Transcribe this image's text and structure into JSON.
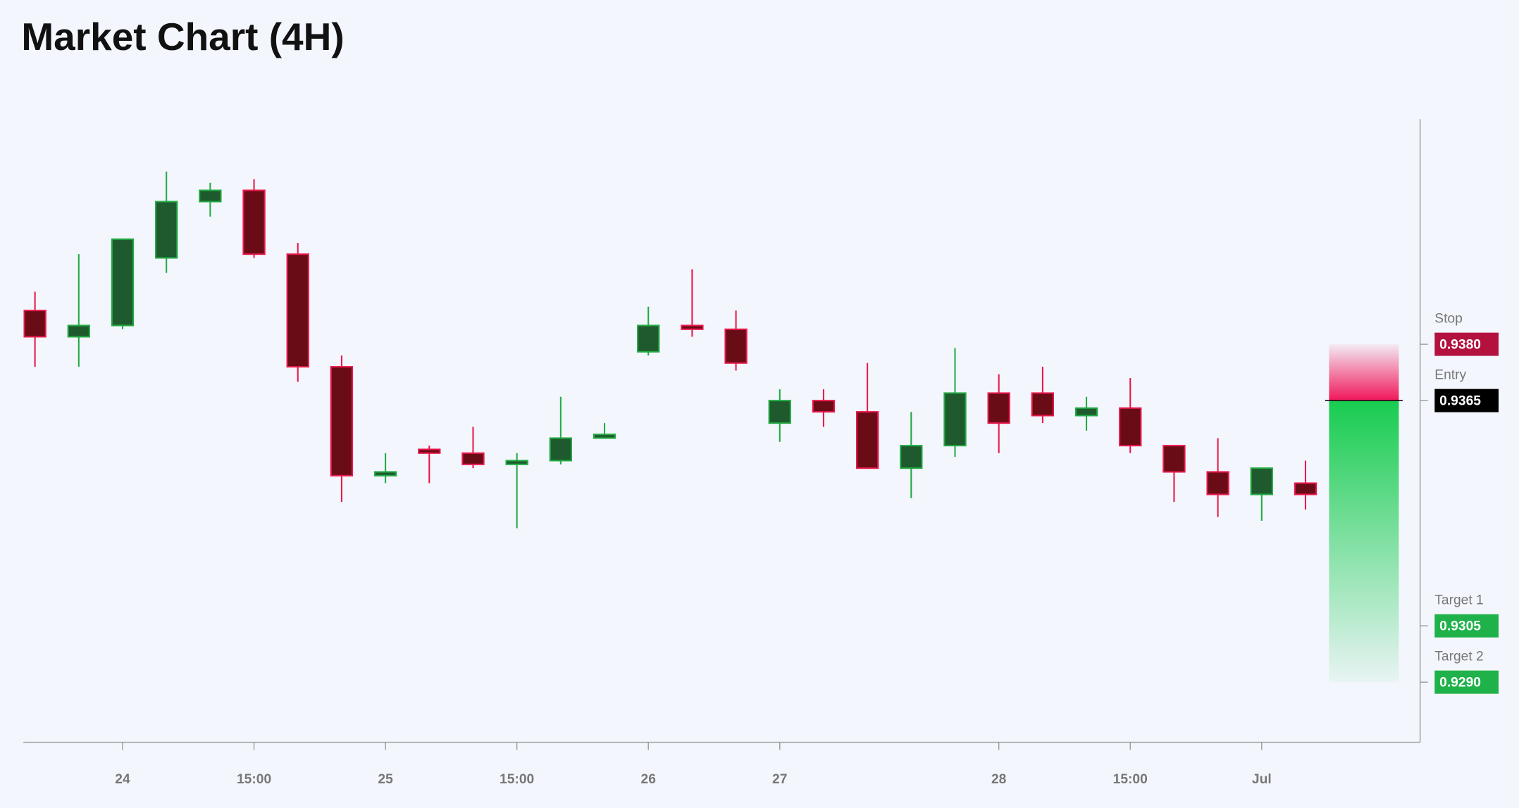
{
  "chart_data": {
    "type": "candlestick",
    "title": "Market Chart (4H)",
    "categories": [
      null,
      null,
      "24",
      null,
      null,
      "15:00",
      null,
      null,
      "25",
      null,
      null,
      "15:00",
      null,
      null,
      "26",
      null,
      null,
      "27",
      null,
      null,
      null,
      null,
      "28",
      null,
      null,
      "15:00",
      null,
      null,
      "Jul",
      null
    ],
    "open": [
      0.9389,
      0.9382,
      0.9385,
      0.9403,
      0.9418,
      0.9421,
      0.9404,
      0.9374,
      0.9345,
      0.9352,
      0.9351,
      0.9348,
      0.9349,
      0.9355,
      0.9378,
      0.9385,
      0.9384,
      0.9359,
      0.9365,
      0.9362,
      0.9347,
      0.9353,
      0.9367,
      0.9367,
      0.9361,
      0.9363,
      0.9353,
      0.9346,
      0.934,
      0.9343
    ],
    "high": [
      0.9394,
      0.9404,
      0.9408,
      0.9426,
      0.9423,
      0.9424,
      0.9407,
      0.9377,
      0.9351,
      0.9353,
      0.9358,
      0.9351,
      0.9366,
      0.9359,
      0.939,
      0.94,
      0.9389,
      0.9368,
      0.9368,
      0.9375,
      0.9362,
      0.9379,
      0.9372,
      0.9374,
      0.9366,
      0.9371,
      0.9353,
      0.9355,
      0.9347,
      0.9349
    ],
    "low": [
      0.9374,
      0.9374,
      0.9384,
      0.9399,
      0.9414,
      0.9403,
      0.937,
      0.9338,
      0.9343,
      0.9343,
      0.9347,
      0.9331,
      0.9348,
      0.9355,
      0.9377,
      0.9382,
      0.9373,
      0.9354,
      0.9358,
      0.9347,
      0.9339,
      0.935,
      0.9351,
      0.9359,
      0.9357,
      0.9351,
      0.9338,
      0.9334,
      0.9333,
      0.9336
    ],
    "close": [
      0.9382,
      0.9385,
      0.9408,
      0.9418,
      0.9421,
      0.9404,
      0.9374,
      0.9345,
      0.9346,
      0.9351,
      0.9348,
      0.9349,
      0.9355,
      0.9356,
      0.9385,
      0.9384,
      0.9375,
      0.9365,
      0.9362,
      0.9347,
      0.9353,
      0.9367,
      0.9359,
      0.9361,
      0.9363,
      0.9353,
      0.9346,
      0.934,
      0.9347,
      0.934
    ],
    "up_color": "#22aa44",
    "up_fill": "#1f5a2e",
    "down_color": "#e8184c",
    "down_fill": "#6a0c16",
    "ylim": [
      0.9274,
      0.944
    ],
    "levels": [
      {
        "name": "Stop",
        "value": 0.938,
        "label": "0.9380",
        "color": "#b3123f"
      },
      {
        "name": "Entry",
        "value": 0.9365,
        "label": "0.9365",
        "color": "#000000"
      },
      {
        "name": "Target 1",
        "value": 0.9305,
        "label": "0.9305",
        "color": "#1fb24a"
      },
      {
        "name": "Target 2",
        "value": 0.929,
        "label": "0.9290",
        "color": "#1fb24a"
      }
    ]
  }
}
